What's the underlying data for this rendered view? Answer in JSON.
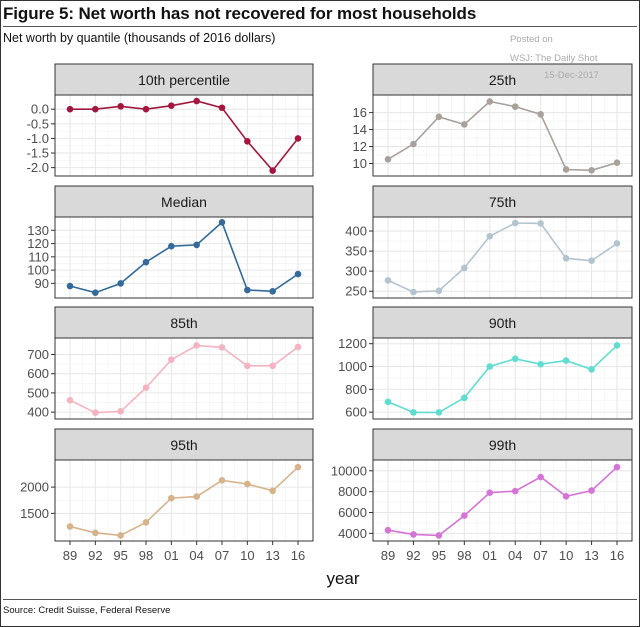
{
  "header": {
    "title": "Figure 5: Net worth has not recovered for most households",
    "subtitle": "Net worth by quantile (thousands of 2016 dollars)",
    "posted_on": "Posted on",
    "posted_source": "WSJ: The Daily Shot",
    "posted_date": "15-Dec-2017"
  },
  "footer": {
    "source": "Source: Credit Suisse, Federal Reserve"
  },
  "chart_data": {
    "type": "line",
    "title": "Net worth by quantile (thousands of 2016 dollars)",
    "xlabel": "year",
    "ylabel": "",
    "grid": true,
    "legend": "none",
    "x": [
      "89",
      "92",
      "95",
      "98",
      "01",
      "04",
      "07",
      "10",
      "13",
      "16"
    ],
    "panels": [
      {
        "name": "10th percentile",
        "color": "#a3173e",
        "ylim": [
          -2.15,
          0.35
        ],
        "yticks": [
          0.0,
          -0.5,
          -1.0,
          -1.5,
          -2.0
        ],
        "ytick_labels": [
          "0.0",
          "-0.5",
          "-1.0",
          "-1.5",
          "-2.0"
        ],
        "values": [
          0.0,
          0.0,
          0.1,
          0.0,
          0.12,
          0.28,
          0.05,
          -1.1,
          -2.1,
          -1.0
        ]
      },
      {
        "name": "25th",
        "color": "#a8a19c",
        "ylim": [
          9.0,
          17.6
        ],
        "yticks": [
          10,
          12,
          14,
          16
        ],
        "ytick_labels": [
          "10",
          "12",
          "14",
          "16"
        ],
        "values": [
          10.5,
          12.3,
          15.5,
          14.6,
          17.3,
          16.7,
          15.8,
          9.3,
          9.2,
          10.1
        ]
      },
      {
        "name": "Median",
        "color": "#336a99",
        "ylim": [
          82,
          137
        ],
        "yticks": [
          90,
          100,
          110,
          120,
          130
        ],
        "ytick_labels": [
          "90",
          "100",
          "110",
          "120",
          "130"
        ],
        "values": [
          88,
          83,
          90,
          106,
          118,
          119,
          136,
          85,
          84,
          97
        ]
      },
      {
        "name": "75th",
        "color": "#b3c4cf",
        "ylim": [
          243,
          425
        ],
        "yticks": [
          250,
          300,
          350,
          400
        ],
        "ytick_labels": [
          "250",
          "300",
          "350",
          "400"
        ],
        "values": [
          277,
          248,
          251,
          308,
          387,
          420,
          419,
          332,
          326,
          369
        ]
      },
      {
        "name": "85th",
        "color": "#f5b3c1",
        "ylim": [
          385,
          765
        ],
        "yticks": [
          400,
          500,
          600,
          700
        ],
        "ytick_labels": [
          "400",
          "500",
          "600",
          "700"
        ],
        "values": [
          462,
          397,
          404,
          527,
          673,
          747,
          737,
          641,
          641,
          739
        ]
      },
      {
        "name": "90th",
        "color": "#5fddd0",
        "ylim": [
          575,
          1215
        ],
        "yticks": [
          600,
          800,
          1000,
          1200
        ],
        "ytick_labels": [
          "600",
          "800",
          "1000",
          "1200"
        ],
        "values": [
          690,
          598,
          598,
          726,
          1000,
          1068,
          1020,
          1052,
          975,
          1185
        ]
      },
      {
        "name": "95th",
        "color": "#d6b38a",
        "ylim": [
          1050,
          2440
        ],
        "yticks": [
          1500,
          2000
        ],
        "ytick_labels": [
          "1500",
          "2000"
        ],
        "values": [
          1250,
          1130,
          1080,
          1330,
          1790,
          1820,
          2130,
          2060,
          1930,
          2380
        ]
      },
      {
        "name": "99th",
        "color": "#d673d6",
        "ylim": [
          3650,
          10650
        ],
        "yticks": [
          4000,
          6000,
          8000,
          10000
        ],
        "ytick_labels": [
          "4000",
          "6000",
          "8000",
          "10000"
        ],
        "values": [
          4300,
          3900,
          3800,
          5700,
          7900,
          8050,
          9400,
          7550,
          8100,
          10350
        ]
      }
    ]
  }
}
